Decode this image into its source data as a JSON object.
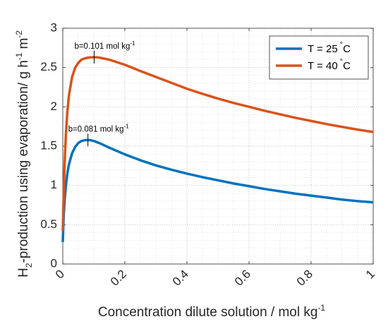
{
  "chart_data": {
    "type": "line",
    "xlabel": "Concentration dilute solution / mol kg",
    "xlabel_sup": "-1",
    "ylabel": {
      "prefix": "H",
      "sub": "2",
      "middle": "-production using evaporation/ g h",
      "sup1": "-1",
      "unit2": "m",
      "sup2": "-2"
    },
    "xlim": [
      0,
      1
    ],
    "ylim": [
      0,
      3
    ],
    "xticks": [
      0,
      0.2,
      0.4,
      0.6,
      0.8,
      1
    ],
    "xtick_labels": [
      "0",
      "0.2",
      "0.4",
      "0.6",
      "0.8",
      "1"
    ],
    "yticks": [
      0,
      0.5,
      1,
      1.5,
      2,
      2.5,
      3
    ],
    "ytick_labels": [
      "0",
      "0.5",
      "1",
      "1.5",
      "2",
      "2.5",
      "3"
    ],
    "grid": "major and minor (dotted)",
    "legend_position": "top-right",
    "series": [
      {
        "name": "T = 25 °C",
        "label_main": "T = 25",
        "label_sup": "°",
        "label_unit": "C",
        "color": "#0072BD",
        "x": [
          0.0,
          0.003,
          0.006,
          0.01,
          0.015,
          0.02,
          0.03,
          0.04,
          0.05,
          0.06,
          0.07,
          0.081,
          0.09,
          0.1,
          0.12,
          0.15,
          0.2,
          0.25,
          0.3,
          0.35,
          0.4,
          0.45,
          0.5,
          0.55,
          0.6,
          0.65,
          0.7,
          0.75,
          0.8,
          0.85,
          0.9,
          0.95,
          1.0
        ],
        "y": [
          0.28,
          0.62,
          0.82,
          1.0,
          1.16,
          1.27,
          1.41,
          1.49,
          1.54,
          1.565,
          1.575,
          1.578,
          1.575,
          1.565,
          1.535,
          1.48,
          1.395,
          1.32,
          1.255,
          1.2,
          1.15,
          1.105,
          1.065,
          1.025,
          0.99,
          0.955,
          0.925,
          0.895,
          0.87,
          0.845,
          0.82,
          0.8,
          0.785
        ]
      },
      {
        "name": "T = 40 °C",
        "label_main": "T = 40",
        "label_sup": "°",
        "label_unit": "C",
        "color": "#D95319",
        "x": [
          0.0,
          0.003,
          0.006,
          0.01,
          0.015,
          0.02,
          0.03,
          0.04,
          0.05,
          0.06,
          0.07,
          0.08,
          0.09,
          0.101,
          0.11,
          0.12,
          0.15,
          0.2,
          0.25,
          0.3,
          0.35,
          0.4,
          0.45,
          0.5,
          0.55,
          0.6,
          0.65,
          0.7,
          0.75,
          0.8,
          0.85,
          0.9,
          0.95,
          1.0
        ],
        "y": [
          0.42,
          0.9,
          1.28,
          1.65,
          1.95,
          2.15,
          2.38,
          2.5,
          2.56,
          2.6,
          2.615,
          2.625,
          2.63,
          2.632,
          2.63,
          2.625,
          2.6,
          2.535,
          2.455,
          2.38,
          2.305,
          2.23,
          2.165,
          2.105,
          2.05,
          2.0,
          1.95,
          1.905,
          1.86,
          1.82,
          1.78,
          1.745,
          1.71,
          1.68
        ]
      }
    ],
    "annotations": [
      {
        "text": "b=0.101 mol kg",
        "sup": "-1",
        "x": 0.101,
        "y": 2.632,
        "series": 1
      },
      {
        "text": "b=0.081 mol kg",
        "sup": "-1",
        "x": 0.081,
        "y": 1.578,
        "series": 0
      }
    ]
  }
}
